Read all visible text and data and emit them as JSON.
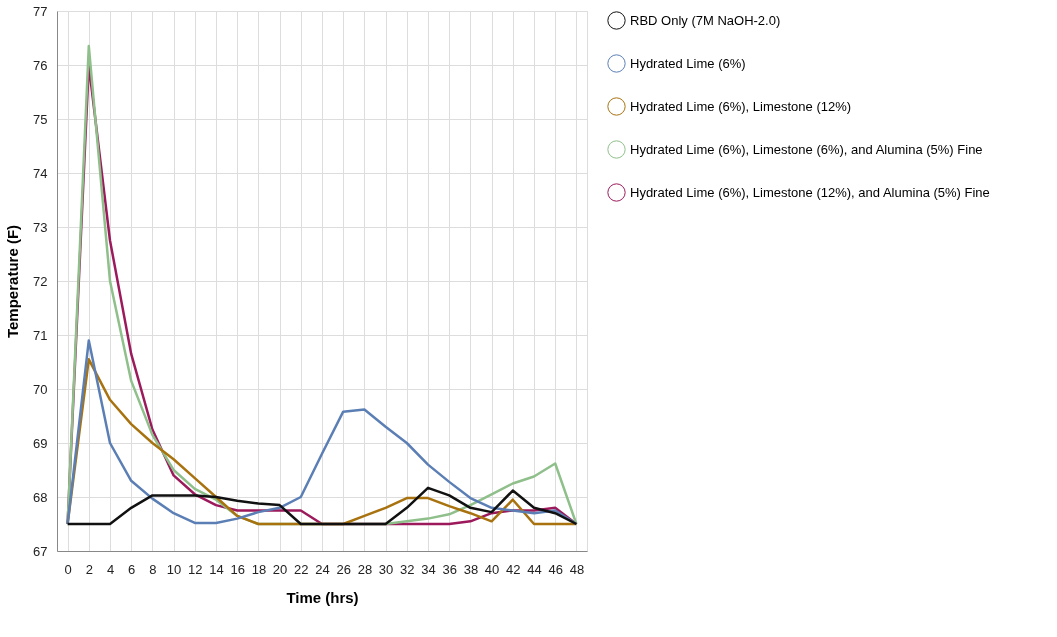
{
  "chart_data": {
    "type": "line",
    "xlabel": "Time (hrs)",
    "ylabel": "Temperature (F)",
    "x": [
      0,
      2,
      4,
      6,
      8,
      10,
      12,
      14,
      16,
      18,
      20,
      22,
      24,
      26,
      28,
      30,
      32,
      34,
      36,
      38,
      40,
      42,
      44,
      46,
      48
    ],
    "xlim": [
      -1,
      49
    ],
    "xticks": [
      0,
      2,
      4,
      6,
      8,
      10,
      12,
      14,
      16,
      18,
      20,
      22,
      24,
      26,
      28,
      30,
      32,
      34,
      36,
      38,
      40,
      42,
      44,
      46,
      48
    ],
    "ylim": [
      67,
      77
    ],
    "yticks": [
      67,
      68,
      69,
      70,
      71,
      72,
      73,
      74,
      75,
      76,
      77
    ],
    "grid": true,
    "legend": "right",
    "marker": "none",
    "line_style": "solid",
    "series": [
      {
        "name": "RBD Only (7M NaOH-2.0)",
        "color": "#111111",
        "values": [
          67.5,
          67.5,
          67.5,
          67.8,
          68.03,
          68.03,
          68.03,
          68.0,
          67.93,
          67.88,
          67.85,
          67.5,
          67.5,
          67.5,
          67.5,
          67.5,
          67.8,
          68.17,
          68.03,
          67.8,
          67.72,
          68.12,
          67.8,
          67.7,
          67.5
        ]
      },
      {
        "name": "Hydrated Lime (6%)",
        "color": "#5b7fb5",
        "values": [
          67.5,
          70.9,
          69.0,
          68.3,
          67.97,
          67.7,
          67.52,
          67.52,
          67.6,
          67.72,
          67.8,
          68.0,
          68.8,
          69.58,
          69.62,
          69.3,
          69.0,
          68.6,
          68.28,
          67.98,
          67.8,
          67.75,
          67.7,
          67.75,
          67.5
        ]
      },
      {
        "name": "Hydrated Lime (6%), Limestone (12%)",
        "color": "#a8720f",
        "values": [
          67.5,
          70.55,
          69.8,
          69.35,
          69.0,
          68.7,
          68.35,
          68.0,
          67.65,
          67.5,
          67.5,
          67.5,
          67.5,
          67.5,
          67.65,
          67.8,
          67.98,
          67.98,
          67.83,
          67.7,
          67.55,
          67.95,
          67.5,
          67.5,
          67.5
        ]
      },
      {
        "name": "Hydrated Lime (6%), Limestone (6%), and Alumina (5%) Fine",
        "color": "#8fbf8a",
        "values": [
          67.5,
          76.35,
          72.0,
          70.15,
          69.15,
          68.5,
          68.15,
          67.95,
          67.65,
          67.5,
          67.5,
          67.5,
          67.5,
          67.5,
          67.5,
          67.5,
          67.55,
          67.6,
          67.68,
          67.85,
          68.05,
          68.25,
          68.38,
          68.62,
          67.5
        ]
      },
      {
        "name": "Hydrated Lime (6%), Limestone (12%), and Alumina (5%) Fine",
        "color": "#9c1a5c",
        "values": [
          67.5,
          76.0,
          72.75,
          70.65,
          69.25,
          68.4,
          68.05,
          67.85,
          67.75,
          67.75,
          67.75,
          67.75,
          67.5,
          67.5,
          67.5,
          67.5,
          67.5,
          67.5,
          67.5,
          67.55,
          67.7,
          67.75,
          67.75,
          67.8,
          67.5
        ]
      }
    ]
  }
}
